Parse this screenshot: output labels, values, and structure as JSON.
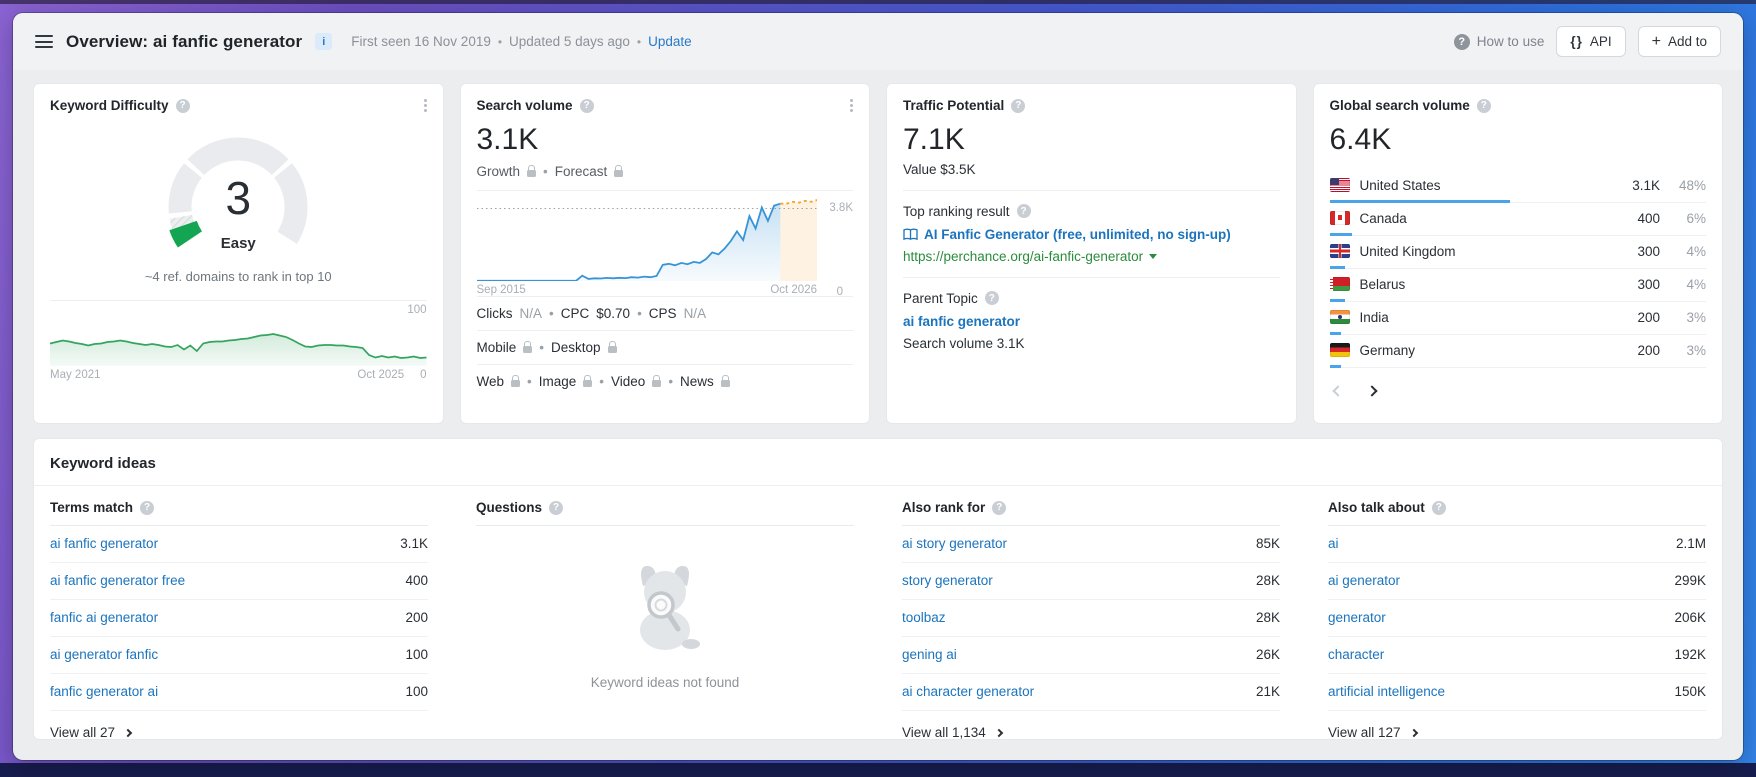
{
  "icons": {
    "help": "?",
    "info": "i",
    "braces": "{}",
    "plus": "+",
    "howto_q": "?"
  },
  "header": {
    "title": "Overview: ai fanfic generator",
    "first_seen": "First seen 16 Nov 2019",
    "updated": "Updated 5 days ago",
    "update_link": "Update",
    "how_to_use": "How to use",
    "api_button": "API",
    "add_to_button": "Add to"
  },
  "cards": {
    "keyword_difficulty": {
      "title": "Keyword Difficulty",
      "value": "3",
      "label": "Easy",
      "subtitle": "~4 ref. domains to rank in top 10",
      "y_top": "100",
      "y_bottom": "0",
      "x_start": "May 2021",
      "x_end": "Oct 2025"
    },
    "search_volume": {
      "title": "Search volume",
      "value": "3.1K",
      "growth_label": "Growth",
      "forecast_label": "Forecast",
      "ref_label": "3.8K",
      "y_bottom": "0",
      "x_start": "Sep 2015",
      "x_end": "Oct 2026",
      "clicks_label": "Clicks",
      "clicks_value": "N/A",
      "cpc_label": "CPC",
      "cpc_value": "$0.70",
      "cps_label": "CPS",
      "cps_value": "N/A",
      "mobile_label": "Mobile",
      "desktop_label": "Desktop",
      "web_label": "Web",
      "image_label": "Image",
      "video_label": "Video",
      "news_label": "News"
    },
    "traffic_potential": {
      "title": "Traffic Potential",
      "value": "7.1K",
      "value_sub": "Value $3.5K",
      "top_ranking_label": "Top ranking result",
      "top_ranking_title": "AI Fanfic Generator (free, unlimited, no sign-up)",
      "top_ranking_url": "https://perchance.org/ai-fanfic-generator",
      "parent_topic_label": "Parent Topic",
      "parent_topic": "ai fanfic generator",
      "parent_topic_volume": "Search volume 3.1K"
    },
    "global_search_volume": {
      "title": "Global search volume",
      "value": "6.4K",
      "countries": [
        {
          "code": "us",
          "name": "United States",
          "volume": "3.1K",
          "percent": "48%",
          "bar": 48
        },
        {
          "code": "ca",
          "name": "Canada",
          "volume": "400",
          "percent": "6%",
          "bar": 6
        },
        {
          "code": "gb",
          "name": "United Kingdom",
          "volume": "300",
          "percent": "4%",
          "bar": 4
        },
        {
          "code": "by",
          "name": "Belarus",
          "volume": "300",
          "percent": "4%",
          "bar": 4
        },
        {
          "code": "in",
          "name": "India",
          "volume": "200",
          "percent": "3%",
          "bar": 3
        },
        {
          "code": "de",
          "name": "Germany",
          "volume": "200",
          "percent": "3%",
          "bar": 3
        }
      ]
    }
  },
  "keyword_ideas": {
    "title": "Keyword ideas",
    "columns": [
      {
        "key": "terms-match",
        "header": "Terms match",
        "rows": [
          {
            "kw": "ai fanfic generator",
            "vol": "3.1K"
          },
          {
            "kw": "ai fanfic generator free",
            "vol": "400"
          },
          {
            "kw": "fanfic ai generator",
            "vol": "200"
          },
          {
            "kw": "ai generator fanfic",
            "vol": "100"
          },
          {
            "kw": "fanfic generator ai",
            "vol": "100"
          }
        ],
        "view_all": "View all 27"
      },
      {
        "key": "questions",
        "header": "Questions",
        "empty_text": "Keyword ideas not found"
      },
      {
        "key": "also-rank-for",
        "header": "Also rank for",
        "rows": [
          {
            "kw": "ai story generator",
            "vol": "85K"
          },
          {
            "kw": "story generator",
            "vol": "28K"
          },
          {
            "kw": "toolbaz",
            "vol": "28K"
          },
          {
            "kw": "gening ai",
            "vol": "26K"
          },
          {
            "kw": "ai character generator",
            "vol": "21K"
          }
        ],
        "view_all": "View all 1,134"
      },
      {
        "key": "also-talk-about",
        "header": "Also talk about",
        "rows": [
          {
            "kw": "ai",
            "vol": "2.1M"
          },
          {
            "kw": "ai generator",
            "vol": "299K"
          },
          {
            "kw": "generator",
            "vol": "206K"
          },
          {
            "kw": "character",
            "vol": "192K"
          },
          {
            "kw": "artificial intelligence",
            "vol": "150K"
          }
        ],
        "view_all": "View all 127"
      }
    ]
  },
  "chart_data": [
    {
      "id": "kd_gauge",
      "type": "gauge",
      "title": "Keyword Difficulty",
      "value": 3,
      "max": 100,
      "label": "Easy",
      "segment_boundaries": [
        10,
        30,
        70
      ],
      "needle_color": "#13a552",
      "track_color": "#e9ebee"
    },
    {
      "id": "kd_history",
      "type": "area",
      "title": "Keyword Difficulty history",
      "x_start": "May 2021",
      "x_end": "Oct 2025",
      "ylim": [
        0,
        100
      ],
      "y_ticks": [
        "100",
        "0"
      ],
      "color": "#35a45f",
      "values": [
        45,
        48,
        51,
        49,
        46,
        44,
        41,
        44,
        45,
        48,
        49,
        51,
        49,
        46,
        44,
        42,
        44,
        42,
        39,
        38,
        42,
        33,
        41,
        30,
        45,
        48,
        49,
        49,
        51,
        52,
        54,
        55,
        58,
        61,
        62,
        64,
        61,
        58,
        52,
        45,
        39,
        38,
        41,
        42,
        42,
        41,
        41,
        39,
        38,
        36,
        22,
        17,
        20,
        17,
        19,
        16,
        17,
        19,
        16,
        17
      ]
    },
    {
      "id": "search_volume_history",
      "type": "line",
      "title": "Search volume history and forecast",
      "x_start": "Sep 2015",
      "x_end": "Oct 2026",
      "ylim": [
        0,
        4400
      ],
      "ref_line": {
        "value": 3800,
        "label": "3.8K"
      },
      "y_ticks": [
        "3.8K",
        "0"
      ],
      "history_color": "#3894d8",
      "forecast_color": "#f5a623",
      "history": [
        10,
        10,
        10,
        10,
        10,
        10,
        10,
        10,
        10,
        10,
        10,
        10,
        10,
        10,
        10,
        10,
        10,
        280,
        110,
        140,
        130,
        160,
        140,
        170,
        150,
        200,
        180,
        230,
        200,
        260,
        850,
        900,
        820,
        950,
        880,
        1000,
        950,
        1150,
        1500,
        1400,
        1700,
        2100,
        2600,
        2150,
        3400,
        2750,
        3850,
        3150,
        3950,
        4050
      ],
      "forecast": [
        4050,
        4150,
        4100,
        4200,
        4150,
        4250
      ]
    }
  ]
}
